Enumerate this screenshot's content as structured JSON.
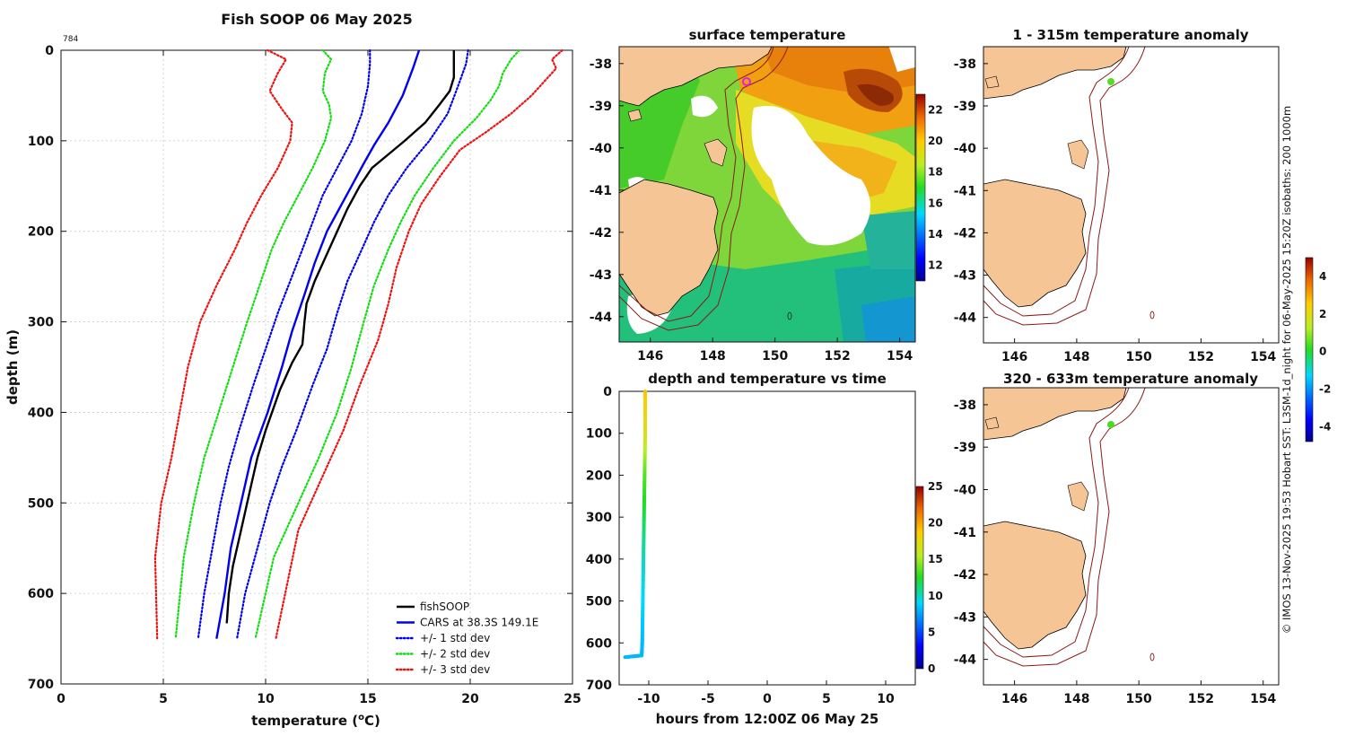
{
  "credit": "© IMOS 13-Nov-2025 19:53 Hobart SST: L3SM-1d_night for 06-May-2025 15:20Z isobaths: 200  1000m",
  "chart_data": [
    {
      "id": "profile",
      "type": "line",
      "title": "Fish SOOP 06 May 2025",
      "corner_label": "784",
      "xlabel": "temperature (",
      "xlabel_sup": "o",
      "xlabel_end": "C)",
      "ylabel": "depth (m)",
      "xlim": [
        0,
        25
      ],
      "ylim": [
        0,
        700
      ],
      "y_inverted": true,
      "xticks": [
        "0",
        "5",
        "10",
        "15",
        "20",
        "25"
      ],
      "yticks": [
        "0",
        "100",
        "200",
        "300",
        "400",
        "500",
        "600",
        "700"
      ],
      "grid": true,
      "legend_position": "bottom-right",
      "series": [
        {
          "name": "fishSOOP",
          "color": "#000000",
          "style": "solid",
          "points": [
            [
              19.2,
              0
            ],
            [
              19.2,
              30
            ],
            [
              19.0,
              45
            ],
            [
              18.5,
              60
            ],
            [
              17.8,
              80
            ],
            [
              16.8,
              100
            ],
            [
              16.0,
              115
            ],
            [
              15.2,
              130
            ],
            [
              14.6,
              150
            ],
            [
              14.0,
              175
            ],
            [
              13.5,
              200
            ],
            [
              13.0,
              225
            ],
            [
              12.4,
              255
            ],
            [
              12.0,
              280
            ],
            [
              11.9,
              300
            ],
            [
              11.8,
              325
            ],
            [
              11.3,
              345
            ],
            [
              10.7,
              375
            ],
            [
              10.0,
              420
            ],
            [
              9.6,
              450
            ],
            [
              9.3,
              480
            ],
            [
              9.0,
              510
            ],
            [
              8.7,
              540
            ],
            [
              8.4,
              570
            ],
            [
              8.2,
              600
            ],
            [
              8.1,
              633
            ]
          ]
        },
        {
          "name": "CARS at 38.3S 149.1E",
          "color": "#0000ee",
          "style": "solid",
          "points": [
            [
              17.5,
              0
            ],
            [
              17.2,
              20
            ],
            [
              16.7,
              50
            ],
            [
              16.0,
              80
            ],
            [
              15.3,
              105
            ],
            [
              14.8,
              125
            ],
            [
              14.2,
              150
            ],
            [
              13.6,
              175
            ],
            [
              13.0,
              200
            ],
            [
              12.4,
              235
            ],
            [
              11.9,
              270
            ],
            [
              11.3,
              310
            ],
            [
              10.8,
              350
            ],
            [
              10.1,
              400
            ],
            [
              9.3,
              450
            ],
            [
              8.8,
              500
            ],
            [
              8.3,
              550
            ],
            [
              8.0,
              600
            ],
            [
              7.6,
              650
            ]
          ]
        },
        {
          "name": "+/- 1 std dev",
          "color": "#0000ee",
          "style": "dotted",
          "points": [
            [
              15.1,
              0
            ],
            [
              15.1,
              15
            ],
            [
              15.0,
              40
            ],
            [
              14.7,
              70
            ],
            [
              14.2,
              100
            ],
            [
              13.5,
              130
            ],
            [
              12.8,
              160
            ],
            [
              12.3,
              190
            ],
            [
              11.8,
              220
            ],
            [
              11.2,
              255
            ],
            [
              10.6,
              290
            ],
            [
              10.0,
              330
            ],
            [
              9.4,
              370
            ],
            [
              8.7,
              420
            ],
            [
              8.2,
              460
            ],
            [
              7.8,
              500
            ],
            [
              7.4,
              550
            ],
            [
              7.0,
              600
            ],
            [
              6.7,
              650
            ]
          ]
        }
      ],
      "series_mirror": [
        {
          "name": "+/- 1 std dev",
          "color": "#0000ee",
          "style": "dotted",
          "points": [
            [
              19.9,
              0
            ],
            [
              19.8,
              15
            ],
            [
              19.4,
              40
            ],
            [
              18.9,
              70
            ],
            [
              18.0,
              100
            ],
            [
              16.9,
              130
            ],
            [
              16.0,
              160
            ],
            [
              15.3,
              190
            ],
            [
              14.7,
              220
            ],
            [
              14.0,
              255
            ],
            [
              13.5,
              290
            ],
            [
              13.0,
              330
            ],
            [
              12.3,
              370
            ],
            [
              11.5,
              420
            ],
            [
              10.8,
              460
            ],
            [
              10.2,
              500
            ],
            [
              9.6,
              550
            ],
            [
              9.0,
              600
            ],
            [
              8.6,
              650
            ]
          ]
        },
        {
          "name": "+/- 2 std dev",
          "color": "#11dd11",
          "style": "dotted",
          "points": [
            [
              12.8,
              0
            ],
            [
              13.2,
              10
            ],
            [
              12.9,
              25
            ],
            [
              12.8,
              45
            ],
            [
              13.1,
              60
            ],
            [
              13.2,
              75
            ],
            [
              12.9,
              100
            ],
            [
              12.3,
              130
            ],
            [
              11.6,
              160
            ],
            [
              10.9,
              190
            ],
            [
              10.3,
              220
            ],
            [
              9.7,
              260
            ],
            [
              9.1,
              300
            ],
            [
              8.4,
              350
            ],
            [
              7.7,
              400
            ],
            [
              7.0,
              450
            ],
            [
              6.5,
              500
            ],
            [
              6.0,
              560
            ],
            [
              5.6,
              650
            ]
          ]
        },
        {
          "name": "+/- 2 std dev",
          "color": "#11dd11",
          "style": "dotted",
          "points": [
            [
              22.4,
              0
            ],
            [
              22.0,
              10
            ],
            [
              21.6,
              25
            ],
            [
              21.4,
              40
            ],
            [
              21.0,
              55
            ],
            [
              20.3,
              75
            ],
            [
              19.2,
              100
            ],
            [
              18.2,
              130
            ],
            [
              17.3,
              160
            ],
            [
              16.6,
              190
            ],
            [
              16.0,
              220
            ],
            [
              15.3,
              260
            ],
            [
              14.8,
              300
            ],
            [
              14.2,
              350
            ],
            [
              13.5,
              400
            ],
            [
              12.6,
              450
            ],
            [
              11.6,
              500
            ],
            [
              10.4,
              560
            ],
            [
              9.5,
              650
            ]
          ]
        },
        {
          "name": "+/- 3 std dev",
          "color": "#ee1111",
          "style": "dotted",
          "points": [
            [
              10.1,
              0
            ],
            [
              11.0,
              10
            ],
            [
              10.6,
              25
            ],
            [
              10.2,
              45
            ],
            [
              10.8,
              65
            ],
            [
              11.3,
              80
            ],
            [
              11.2,
              100
            ],
            [
              10.6,
              130
            ],
            [
              9.8,
              160
            ],
            [
              9.1,
              190
            ],
            [
              8.5,
              220
            ],
            [
              7.6,
              260
            ],
            [
              6.8,
              300
            ],
            [
              6.2,
              350
            ],
            [
              5.8,
              400
            ],
            [
              5.4,
              450
            ],
            [
              4.9,
              500
            ],
            [
              4.6,
              560
            ],
            [
              4.7,
              650
            ]
          ]
        },
        {
          "name": "+/- 3 std dev",
          "color": "#ee1111",
          "style": "dotted",
          "points": [
            [
              24.5,
              0
            ],
            [
              24.0,
              10
            ],
            [
              24.2,
              20
            ],
            [
              23.6,
              35
            ],
            [
              23.0,
              50
            ],
            [
              22.0,
              70
            ],
            [
              20.8,
              90
            ],
            [
              19.5,
              110
            ],
            [
              18.5,
              140
            ],
            [
              17.6,
              170
            ],
            [
              17.0,
              200
            ],
            [
              16.4,
              240
            ],
            [
              16.0,
              280
            ],
            [
              15.5,
              320
            ],
            [
              14.6,
              370
            ],
            [
              13.8,
              420
            ],
            [
              12.8,
              470
            ],
            [
              11.6,
              530
            ],
            [
              10.5,
              650
            ]
          ]
        }
      ],
      "legend": [
        {
          "label": "fishSOOP",
          "color": "#000000",
          "style": "solid"
        },
        {
          "label": "CARS at 38.3S 149.1E",
          "color": "#0000ee",
          "style": "solid"
        },
        {
          "label": "+/- 1 std dev",
          "color": "#0000ee",
          "style": "dotted"
        },
        {
          "label": "+/- 2 std dev",
          "color": "#11dd11",
          "style": "dotted"
        },
        {
          "label": "+/- 3 std dev",
          "color": "#ee1111",
          "style": "dotted"
        }
      ]
    },
    {
      "id": "sst_map",
      "type": "heatmap",
      "title": "surface temperature",
      "xticks": [
        "146",
        "148",
        "150",
        "152",
        "154"
      ],
      "yticks": [
        "-38",
        "-39",
        "-40",
        "-41",
        "-42",
        "-43",
        "-44"
      ],
      "xlim": [
        145,
        154.5
      ],
      "ylim": [
        -44.6,
        -37.6
      ],
      "colorbar_ticks": [
        "12",
        "14",
        "16",
        "18",
        "20",
        "22"
      ],
      "colorbar_range": [
        11,
        23
      ]
    },
    {
      "id": "depth_time",
      "type": "line",
      "title": "depth and temperature vs time",
      "xlabel": "hours from 12:00Z 06 May 25",
      "xticks": [
        "-10",
        "-5",
        "0",
        "5",
        "10"
      ],
      "yticks": [
        "0",
        "100",
        "200",
        "300",
        "400",
        "500",
        "600",
        "700"
      ],
      "xlim": [
        -12.5,
        12.5
      ],
      "ylim": [
        0,
        700
      ],
      "colorbar_ticks": [
        "0",
        "5",
        "10",
        "15",
        "20",
        "25"
      ],
      "colorbar_range": [
        0,
        25
      ],
      "series": [
        {
          "name": "trace",
          "points": [
            [
              -10.3,
              0,
              19.2
            ],
            [
              -10.3,
              100,
              17.0
            ],
            [
              -10.35,
              200,
              13.5
            ],
            [
              -10.4,
              300,
              11.9
            ],
            [
              -10.45,
              400,
              10.0
            ],
            [
              -10.5,
              500,
              9.0
            ],
            [
              -10.55,
              600,
              8.2
            ],
            [
              -10.6,
              630,
              8.1
            ],
            [
              -12.0,
              634,
              8.1
            ]
          ]
        }
      ]
    },
    {
      "id": "anomaly_top",
      "type": "heatmap",
      "title": "1 - 315m temperature anomaly",
      "xticks": [
        "146",
        "148",
        "150",
        "152",
        "154"
      ],
      "yticks": [
        "-38",
        "-39",
        "-40",
        "-41",
        "-42",
        "-43",
        "-44"
      ],
      "marker": {
        "lon": 149.1,
        "lat": -38.3,
        "anomaly": 0.3
      }
    },
    {
      "id": "anomaly_bottom",
      "type": "heatmap",
      "title": "320 - 633m temperature anomaly",
      "xticks": [
        "146",
        "148",
        "150",
        "152",
        "154"
      ],
      "yticks": [
        "-38",
        "-39",
        "-40",
        "-41",
        "-42",
        "-43",
        "-44"
      ],
      "marker": {
        "lon": 149.1,
        "lat": -38.3,
        "anomaly": 0.4
      }
    },
    {
      "id": "anomaly_colorbar",
      "type": "heatmap",
      "colorbar_ticks": [
        "4",
        "2",
        "0",
        "-2",
        "-4"
      ],
      "colorbar_range": [
        -4.8,
        5
      ]
    }
  ]
}
